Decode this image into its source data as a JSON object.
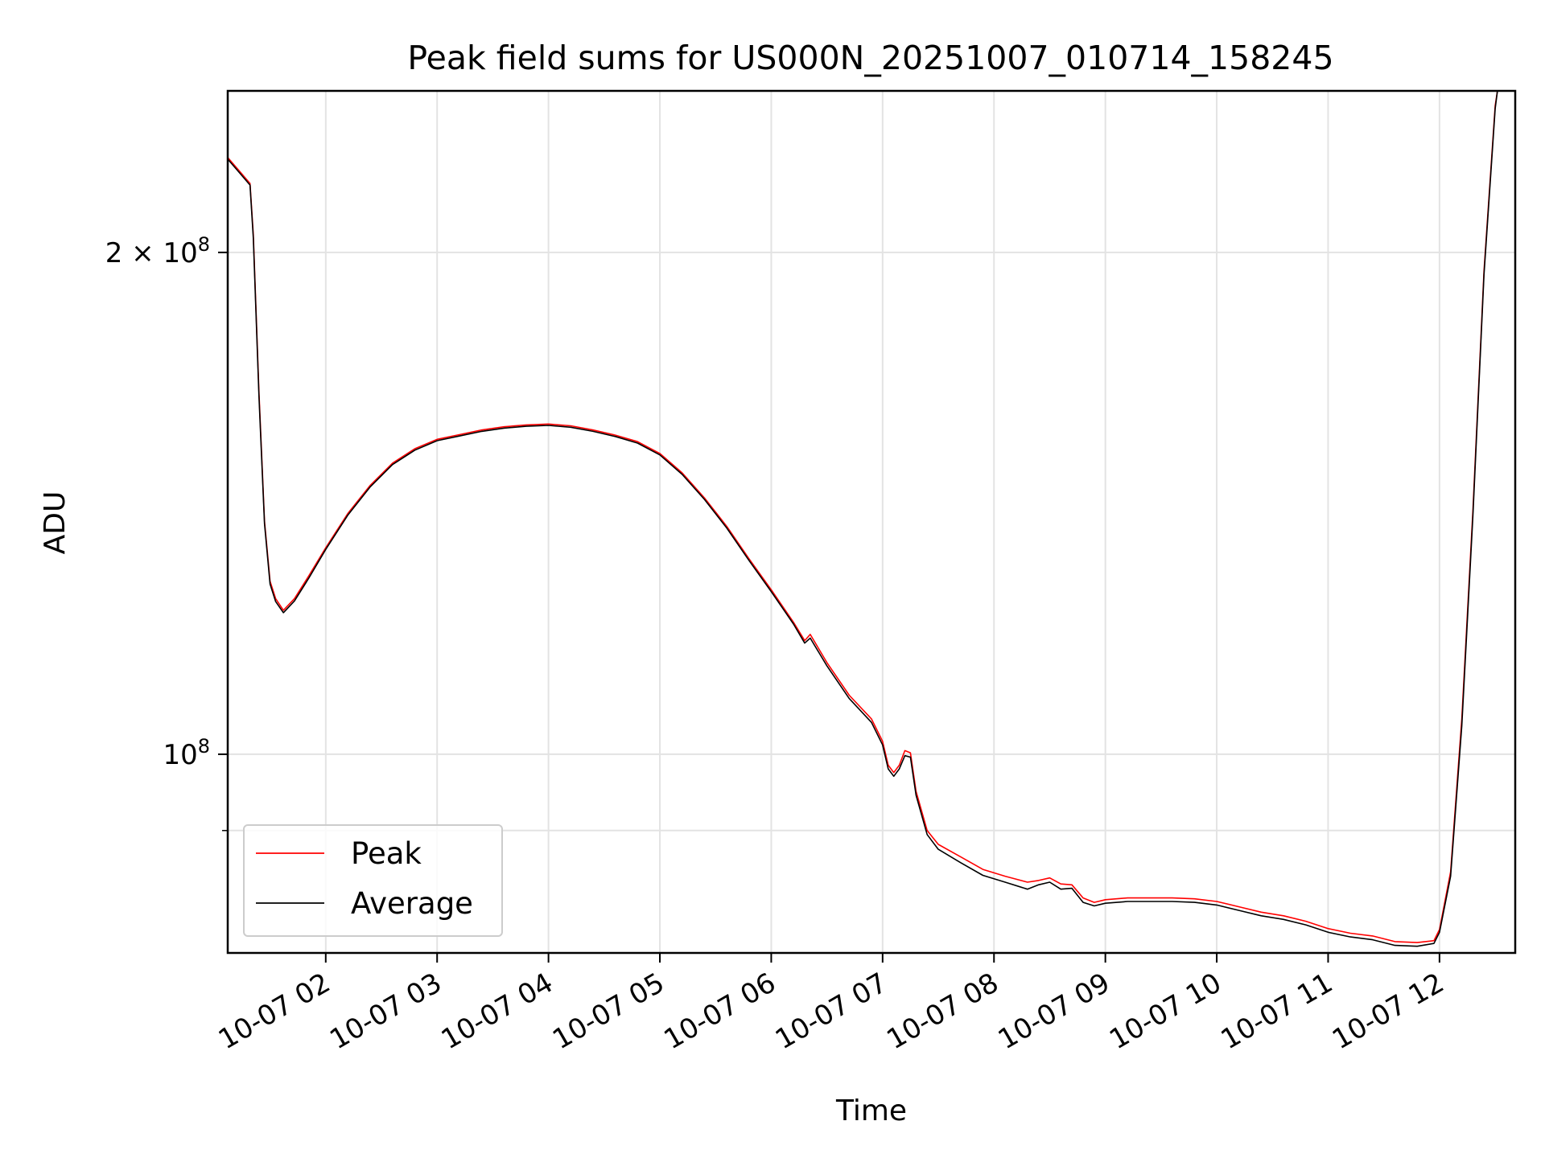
{
  "chart_data": {
    "type": "line",
    "title": "Peak field sums for US000N_20251007_010714_158245",
    "xlabel": "Time",
    "ylabel": "ADU",
    "yscale": "log",
    "xlim": [
      1.12,
      12.68
    ],
    "ylim": [
      76000000,
      250000000
    ],
    "grid": true,
    "x_ticks": [
      {
        "value": 2,
        "label": "10-07 02"
      },
      {
        "value": 3,
        "label": "10-07 03"
      },
      {
        "value": 4,
        "label": "10-07 04"
      },
      {
        "value": 5,
        "label": "10-07 05"
      },
      {
        "value": 6,
        "label": "10-07 06"
      },
      {
        "value": 7,
        "label": "10-07 07"
      },
      {
        "value": 8,
        "label": "10-07 08"
      },
      {
        "value": 9,
        "label": "10-07 09"
      },
      {
        "value": 10,
        "label": "10-07 10"
      },
      {
        "value": 11,
        "label": "10-07 11"
      },
      {
        "value": 12,
        "label": "10-07 12"
      }
    ],
    "y_ticks": [
      {
        "value": 100000000,
        "base": "10",
        "exp": "8",
        "prefix": ""
      },
      {
        "value": 200000000,
        "base": "10",
        "exp": "8",
        "prefix": "2 × "
      }
    ],
    "y_minor_ticks": [
      90000000
    ],
    "legend": {
      "placement": "lower-left"
    },
    "series": [
      {
        "name": "Peak",
        "color": "#ff0000",
        "points": [
          [
            1.12,
            228000000
          ],
          [
            1.22,
            224000000
          ],
          [
            1.32,
            220000000
          ],
          [
            1.35,
            205000000
          ],
          [
            1.4,
            165000000
          ],
          [
            1.45,
            138000000
          ],
          [
            1.5,
            127000000
          ],
          [
            1.55,
            124000000
          ],
          [
            1.62,
            122000000
          ],
          [
            1.72,
            124000000
          ],
          [
            1.85,
            128000000
          ],
          [
            2.0,
            133000000
          ],
          [
            2.2,
            139500000
          ],
          [
            2.4,
            145000000
          ],
          [
            2.6,
            149500000
          ],
          [
            2.8,
            152500000
          ],
          [
            3.0,
            154500000
          ],
          [
            3.2,
            155500000
          ],
          [
            3.4,
            156500000
          ],
          [
            3.6,
            157200000
          ],
          [
            3.8,
            157600000
          ],
          [
            4.0,
            157800000
          ],
          [
            4.2,
            157400000
          ],
          [
            4.4,
            156500000
          ],
          [
            4.6,
            155400000
          ],
          [
            4.8,
            154000000
          ],
          [
            5.0,
            151500000
          ],
          [
            5.2,
            147500000
          ],
          [
            5.4,
            142500000
          ],
          [
            5.6,
            137000000
          ],
          [
            5.8,
            131000000
          ],
          [
            6.0,
            125500000
          ],
          [
            6.2,
            120000000
          ],
          [
            6.3,
            117000000
          ],
          [
            6.35,
            118000000
          ],
          [
            6.5,
            113500000
          ],
          [
            6.7,
            108500000
          ],
          [
            6.9,
            105000000
          ],
          [
            7.0,
            101800000
          ],
          [
            7.05,
            98500000
          ],
          [
            7.1,
            97500000
          ],
          [
            7.15,
            98500000
          ],
          [
            7.2,
            100500000
          ],
          [
            7.25,
            100200000
          ],
          [
            7.3,
            95000000
          ],
          [
            7.4,
            90000000
          ],
          [
            7.5,
            88300000
          ],
          [
            7.7,
            86800000
          ],
          [
            7.9,
            85300000
          ],
          [
            8.1,
            84500000
          ],
          [
            8.3,
            83800000
          ],
          [
            8.4,
            84000000
          ],
          [
            8.5,
            84300000
          ],
          [
            8.6,
            83600000
          ],
          [
            8.7,
            83500000
          ],
          [
            8.8,
            82000000
          ],
          [
            8.9,
            81500000
          ],
          [
            9.0,
            81800000
          ],
          [
            9.2,
            82000000
          ],
          [
            9.4,
            82000000
          ],
          [
            9.6,
            82000000
          ],
          [
            9.8,
            81900000
          ],
          [
            10.0,
            81600000
          ],
          [
            10.2,
            81000000
          ],
          [
            10.4,
            80400000
          ],
          [
            10.6,
            80000000
          ],
          [
            10.8,
            79400000
          ],
          [
            11.0,
            78600000
          ],
          [
            11.2,
            78100000
          ],
          [
            11.4,
            77800000
          ],
          [
            11.6,
            77200000
          ],
          [
            11.8,
            77100000
          ],
          [
            11.95,
            77300000
          ],
          [
            12.0,
            78500000
          ],
          [
            12.1,
            85000000
          ],
          [
            12.2,
            105000000
          ],
          [
            12.3,
            140000000
          ],
          [
            12.4,
            195000000
          ],
          [
            12.5,
            245000000
          ],
          [
            12.52,
            250000000
          ],
          [
            12.68,
            250000000
          ]
        ]
      },
      {
        "name": "Average",
        "color": "#000000",
        "points": [
          [
            1.12,
            227500000
          ],
          [
            1.22,
            223500000
          ],
          [
            1.32,
            219500000
          ],
          [
            1.35,
            204000000
          ],
          [
            1.4,
            164000000
          ],
          [
            1.45,
            137500000
          ],
          [
            1.5,
            126500000
          ],
          [
            1.55,
            123500000
          ],
          [
            1.62,
            121600000
          ],
          [
            1.72,
            123600000
          ],
          [
            1.85,
            127600000
          ],
          [
            2.0,
            132700000
          ],
          [
            2.2,
            139200000
          ],
          [
            2.4,
            144700000
          ],
          [
            2.6,
            149200000
          ],
          [
            2.8,
            152200000
          ],
          [
            3.0,
            154200000
          ],
          [
            3.2,
            155200000
          ],
          [
            3.4,
            156200000
          ],
          [
            3.6,
            156900000
          ],
          [
            3.8,
            157300000
          ],
          [
            4.0,
            157500000
          ],
          [
            4.2,
            157100000
          ],
          [
            4.4,
            156200000
          ],
          [
            4.6,
            155100000
          ],
          [
            4.8,
            153700000
          ],
          [
            5.0,
            151200000
          ],
          [
            5.2,
            147200000
          ],
          [
            5.4,
            142200000
          ],
          [
            5.6,
            136700000
          ],
          [
            5.8,
            130700000
          ],
          [
            6.0,
            125200000
          ],
          [
            6.2,
            119700000
          ],
          [
            6.3,
            116600000
          ],
          [
            6.35,
            117400000
          ],
          [
            6.5,
            113000000
          ],
          [
            6.7,
            108000000
          ],
          [
            6.9,
            104500000
          ],
          [
            7.0,
            101300000
          ],
          [
            7.05,
            98000000
          ],
          [
            7.1,
            97000000
          ],
          [
            7.15,
            98000000
          ],
          [
            7.2,
            99800000
          ],
          [
            7.25,
            99600000
          ],
          [
            7.3,
            94500000
          ],
          [
            7.4,
            89500000
          ],
          [
            7.5,
            87700000
          ],
          [
            7.7,
            86100000
          ],
          [
            7.9,
            84600000
          ],
          [
            8.1,
            83800000
          ],
          [
            8.3,
            83000000
          ],
          [
            8.4,
            83500000
          ],
          [
            8.5,
            83800000
          ],
          [
            8.6,
            83000000
          ],
          [
            8.7,
            83100000
          ],
          [
            8.8,
            81500000
          ],
          [
            8.9,
            81100000
          ],
          [
            9.0,
            81400000
          ],
          [
            9.2,
            81600000
          ],
          [
            9.4,
            81600000
          ],
          [
            9.6,
            81600000
          ],
          [
            9.8,
            81500000
          ],
          [
            10.0,
            81200000
          ],
          [
            10.2,
            80600000
          ],
          [
            10.4,
            80000000
          ],
          [
            10.6,
            79600000
          ],
          [
            10.8,
            79000000
          ],
          [
            11.0,
            78200000
          ],
          [
            11.2,
            77700000
          ],
          [
            11.4,
            77400000
          ],
          [
            11.6,
            76800000
          ],
          [
            11.8,
            76700000
          ],
          [
            11.95,
            77000000
          ],
          [
            12.0,
            78200000
          ],
          [
            12.1,
            84500000
          ],
          [
            12.2,
            104000000
          ],
          [
            12.3,
            139000000
          ],
          [
            12.4,
            194000000
          ],
          [
            12.5,
            244000000
          ],
          [
            12.52,
            250000000
          ],
          [
            12.68,
            250000000
          ]
        ]
      }
    ]
  }
}
